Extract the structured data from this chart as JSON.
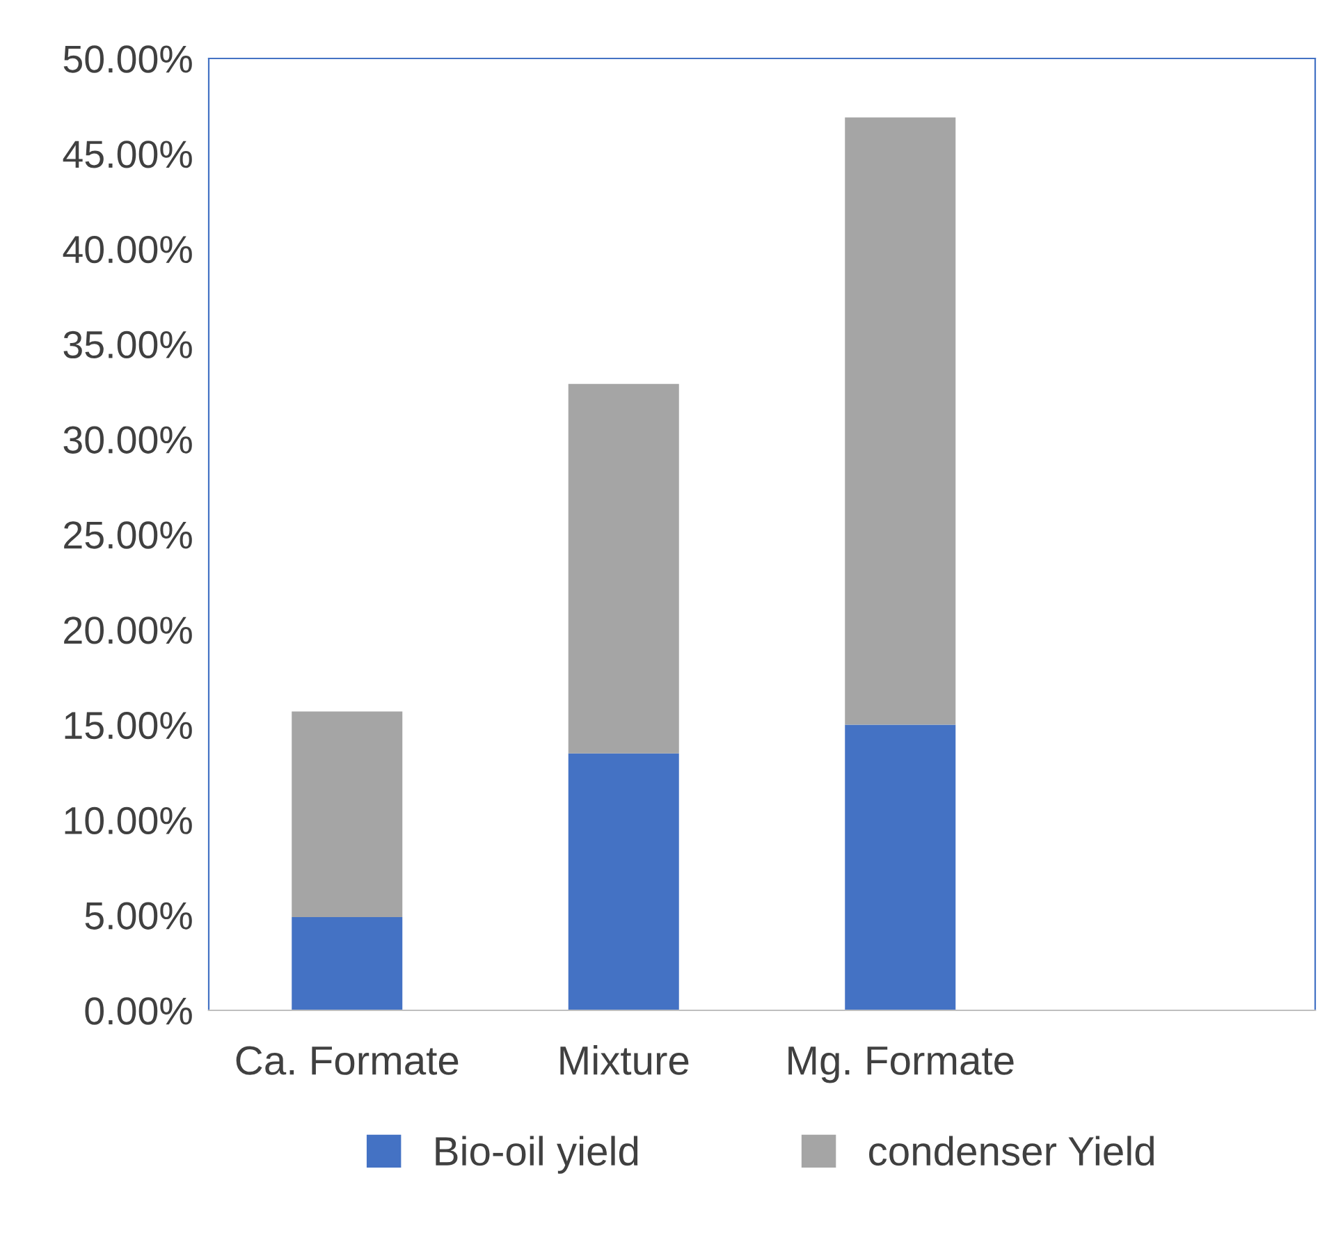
{
  "chart_data": {
    "type": "bar",
    "stacked": true,
    "categories": [
      "Ca. Formate",
      "Mixture",
      "Mg. Formate",
      null
    ],
    "series": [
      {
        "name": "Bio-oil yield",
        "color": "#4472c4",
        "values": [
          4.9,
          13.5,
          15.0,
          null
        ]
      },
      {
        "name": "condenser Yield",
        "color": "#a5a5a5",
        "values": [
          10.8,
          19.4,
          31.9,
          null
        ]
      }
    ],
    "ylim": [
      0,
      50
    ],
    "yticks": [
      {
        "value": 0,
        "label": "0.00%"
      },
      {
        "value": 5,
        "label": "5.00%"
      },
      {
        "value": 10,
        "label": "10.00%"
      },
      {
        "value": 15,
        "label": "15.00%"
      },
      {
        "value": 20,
        "label": "20.00%"
      },
      {
        "value": 25,
        "label": "25.00%"
      },
      {
        "value": 30,
        "label": "30.00%"
      },
      {
        "value": 35,
        "label": "35.00%"
      },
      {
        "value": 40,
        "label": "40.00%"
      },
      {
        "value": 45,
        "label": "45.00%"
      },
      {
        "value": 50,
        "label": "50.00%"
      }
    ],
    "grid": false,
    "legend": "bottom"
  }
}
